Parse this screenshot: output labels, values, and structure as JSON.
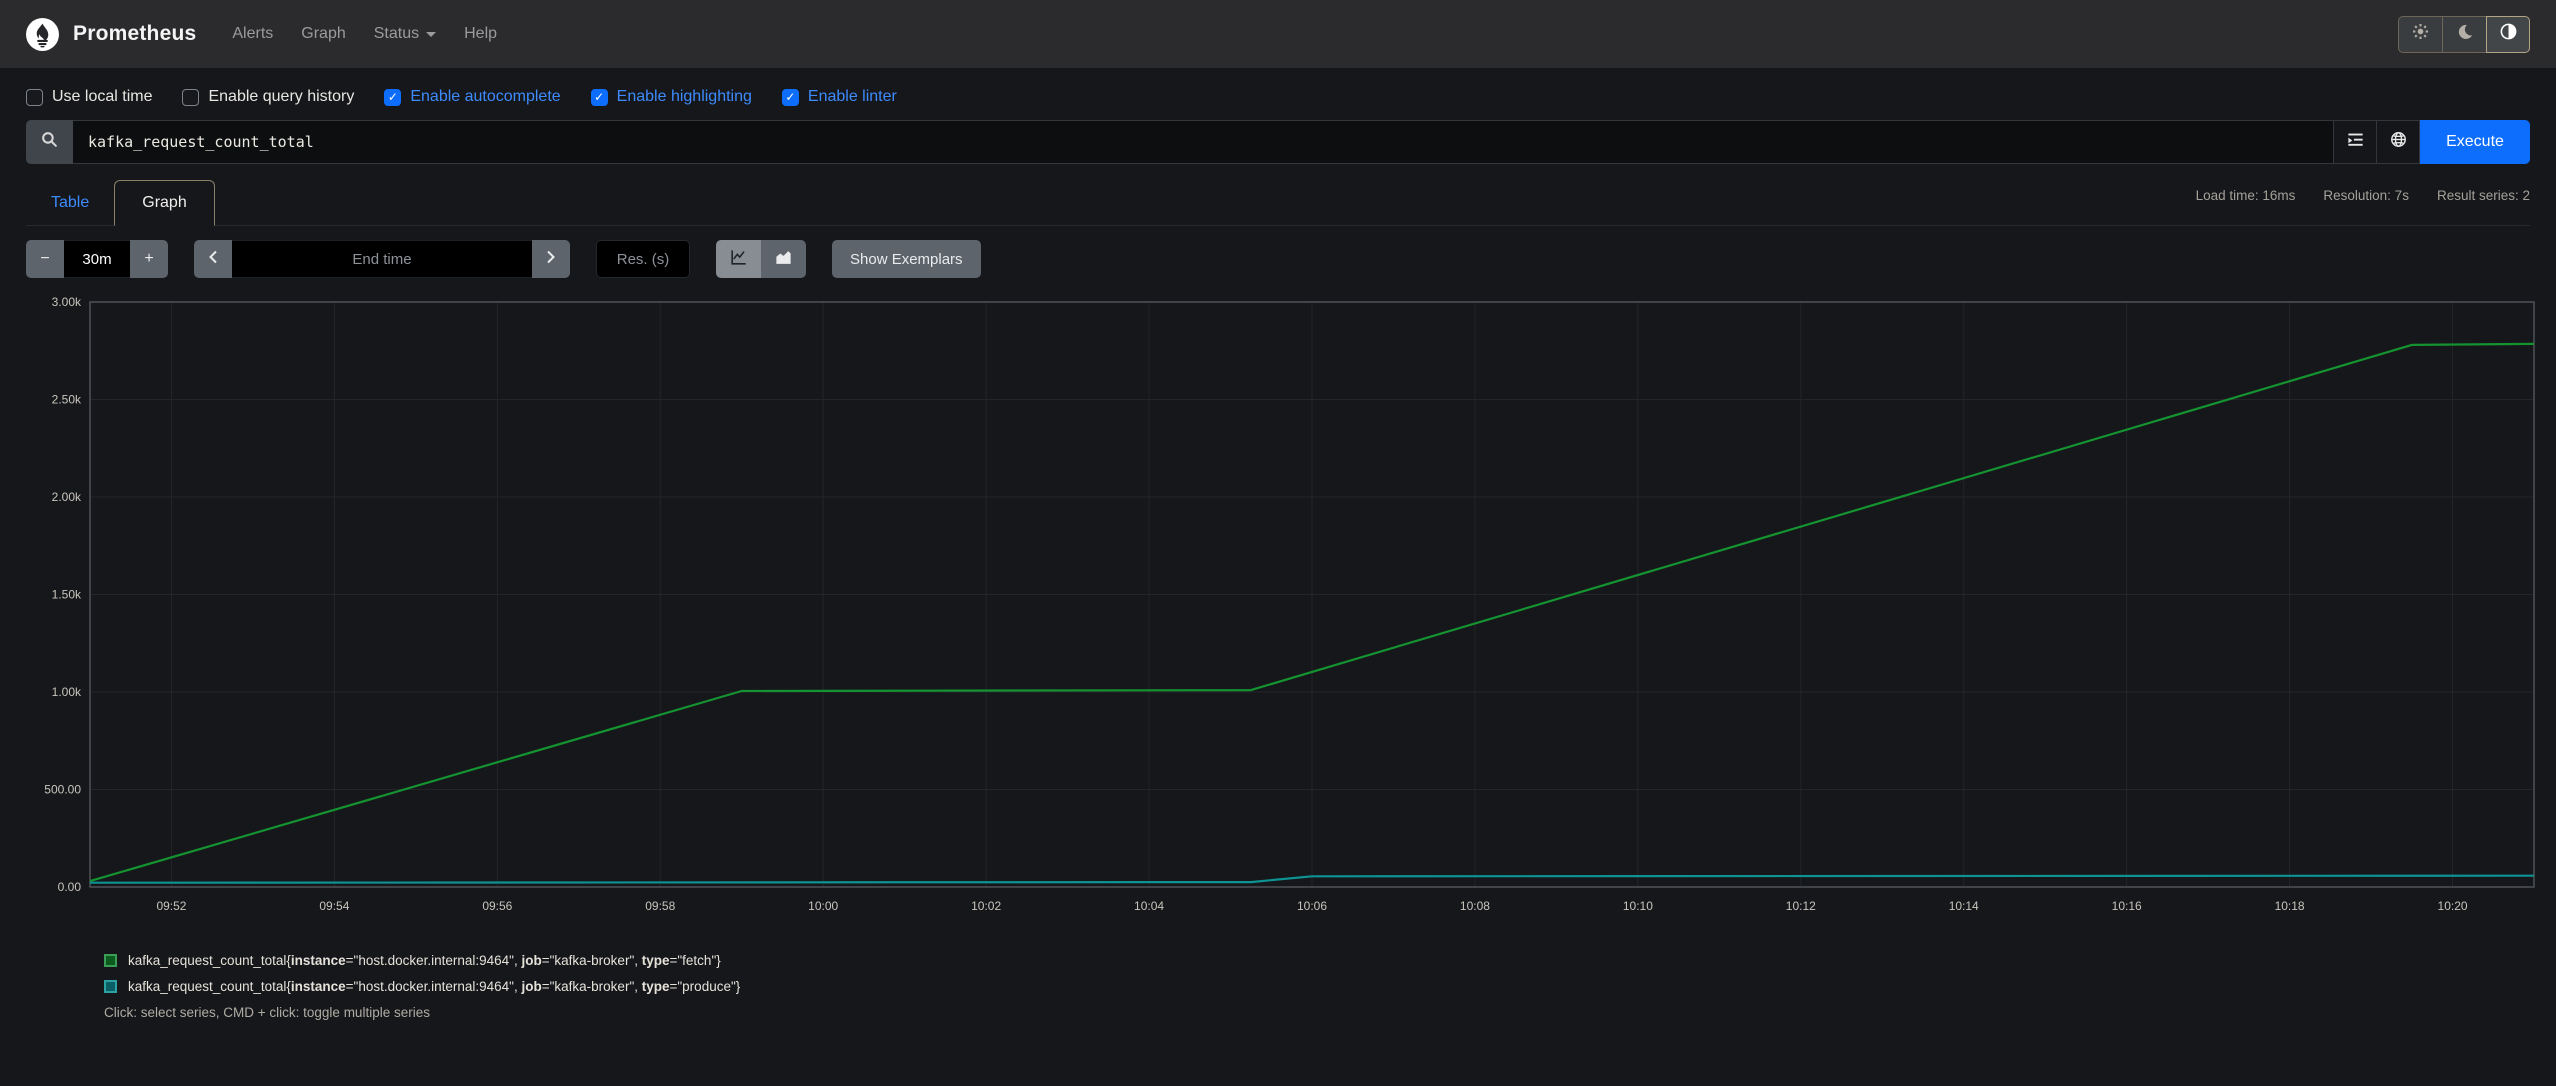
{
  "icons": {
    "check": "✓"
  },
  "navbar": {
    "brand": "Prometheus",
    "items": [
      {
        "label": "Alerts"
      },
      {
        "label": "Graph"
      },
      {
        "label": "Status",
        "has_caret": true
      },
      {
        "label": "Help"
      }
    ],
    "theme_buttons": [
      {
        "name": "light-theme",
        "active": false
      },
      {
        "name": "dark-theme",
        "active": false
      },
      {
        "name": "auto-theme",
        "active": true
      }
    ]
  },
  "options": [
    {
      "label": "Use local time",
      "checked": false
    },
    {
      "label": "Enable query history",
      "checked": false
    },
    {
      "label": "Enable autocomplete",
      "checked": true
    },
    {
      "label": "Enable highlighting",
      "checked": true
    },
    {
      "label": "Enable linter",
      "checked": true
    }
  ],
  "query": {
    "value": "kafka_request_count_total",
    "execute_label": "Execute"
  },
  "tabs": {
    "table": "Table",
    "graph": "Graph"
  },
  "stats": {
    "load_time": "Load time: 16ms",
    "resolution": "Resolution: 7s",
    "result_series": "Result series: 2"
  },
  "controls": {
    "minus_label": "−",
    "plus_label": "+",
    "range_value": "30m",
    "end_time_placeholder": "End time",
    "res_placeholder": "Res. (s)",
    "show_exemplars_label": "Show Exemplars"
  },
  "chart_data": {
    "type": "line",
    "title": "",
    "xlabel": "",
    "ylabel": "",
    "xlim": [
      "09:51:00",
      "10:21:00"
    ],
    "ylim": [
      0,
      3000
    ],
    "grid": true,
    "legend_position": "bottom",
    "axis_color": "#4e5256",
    "grid_color": "#232529",
    "x_ticks": [
      "09:52",
      "09:54",
      "09:56",
      "09:58",
      "10:00",
      "10:02",
      "10:04",
      "10:06",
      "10:08",
      "10:10",
      "10:12",
      "10:14",
      "10:16",
      "10:18",
      "10:20"
    ],
    "y_ticks": [
      {
        "value": 0,
        "label": "0.00"
      },
      {
        "value": 500,
        "label": "500.00"
      },
      {
        "value": 1000,
        "label": "1.00k"
      },
      {
        "value": 1500,
        "label": "1.50k"
      },
      {
        "value": 2000,
        "label": "2.00k"
      },
      {
        "value": 2500,
        "label": "2.50k"
      },
      {
        "value": 3000,
        "label": "3.00k"
      }
    ],
    "series": [
      {
        "name": "kafka_request_count_total{instance=\"host.docker.internal:9464\", job=\"kafka-broker\", type=\"fetch\"}",
        "color": "#159330",
        "points": [
          [
            "09:51:00",
            30
          ],
          [
            "09:59:00",
            1005
          ],
          [
            "10:05:15",
            1010
          ],
          [
            "10:19:30",
            2780
          ],
          [
            "10:21:00",
            2785
          ]
        ]
      },
      {
        "name": "kafka_request_count_total{instance=\"host.docker.internal:9464\", job=\"kafka-broker\", type=\"produce\"}",
        "color": "#0e9393",
        "points": [
          [
            "09:51:00",
            22
          ],
          [
            "10:05:15",
            25
          ],
          [
            "10:06:00",
            55
          ],
          [
            "10:21:00",
            58
          ]
        ]
      }
    ]
  },
  "legend": {
    "series": [
      {
        "swatch_fill": "#0b5c1e",
        "swatch_stroke": "#3b9e57",
        "metric": "kafka_request_count_total",
        "labels": [
          {
            "key": "instance",
            "value": "host.docker.internal:9464"
          },
          {
            "key": "job",
            "value": "kafka-broker"
          },
          {
            "key": "type",
            "value": "fetch"
          }
        ]
      },
      {
        "swatch_fill": "#0b5e63",
        "swatch_stroke": "#2da2a6",
        "metric": "kafka_request_count_total",
        "labels": [
          {
            "key": "instance",
            "value": "host.docker.internal:9464"
          },
          {
            "key": "job",
            "value": "kafka-broker"
          },
          {
            "key": "type",
            "value": "produce"
          }
        ]
      }
    ],
    "hint": "Click: select series, CMD + click: toggle multiple series"
  },
  "colors": {
    "accent_blue": "#0d6efd",
    "link_blue": "#3d8bfd",
    "series_fetch": "#159330",
    "series_produce": "#0e9393"
  }
}
